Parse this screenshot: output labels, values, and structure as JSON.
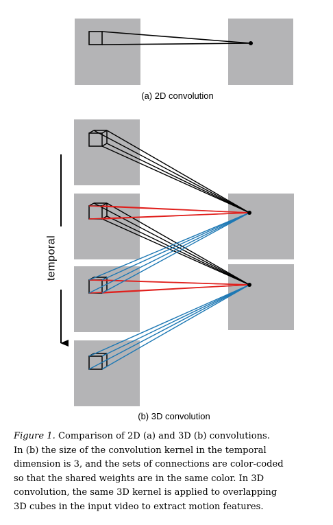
{
  "figure": {
    "subcaption_2d": "(a) 2D convolution",
    "subcaption_3d": "(b) 3D convolution",
    "temporal_label": "temporal",
    "colors": {
      "frame_gray": "#b4b4b6",
      "line_black": "#000000",
      "line_red": "#e0201d",
      "line_blue": "#1d78b4"
    }
  },
  "caption": {
    "label": "Figure 1.",
    "line1": "Comparison of 2D (a) and 3D (b) convolutions.",
    "line2": "In (b) the size of the convolution kernel in the temporal",
    "line3": "dimension is 3, and the sets of connections are color-coded",
    "line4": "so that the shared weights are in the same color.  In 3D",
    "line5": "convolution, the same 3D kernel is applied to overlapping",
    "line6": "3D cubes in the input video to extract motion features."
  }
}
